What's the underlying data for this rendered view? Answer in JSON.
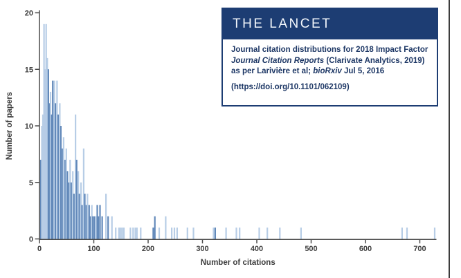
{
  "info_box": {
    "brand": "THE LANCET",
    "lines": [
      [
        {
          "t": "Journal citation distributions for 2018 Impact Factor",
          "i": false
        }
      ],
      [
        {
          "t": "Journal Citation Reports",
          "i": true
        },
        {
          "t": " (Clarivate Analytics, 2019)",
          "i": false
        }
      ],
      [
        {
          "t": "as per Larivière et al; ",
          "i": false
        },
        {
          "t": "bioRxiv",
          "i": true
        },
        {
          "t": " Jul 5, 2016",
          "i": false
        }
      ]
    ],
    "doi_line": "(https://doi.org/10.1101/062109)"
  },
  "colors": {
    "brand_navy": "#1d3d73",
    "info_text_navy": "#1d3765",
    "axis_gray": "#4a4a4a",
    "label_gray": "#3d3d3d",
    "page_edge": "#3c3c3c"
  },
  "chart_data": {
    "type": "bar",
    "title": "",
    "xlabel": "Number of citations",
    "ylabel": "Number of papers",
    "xlim": [
      0,
      730
    ],
    "ylim": [
      0,
      20
    ],
    "x_ticks": [
      0,
      100,
      200,
      300,
      400,
      500,
      600,
      700
    ],
    "y_ticks": [
      0,
      5,
      10,
      15,
      20
    ],
    "grid": false,
    "legend": "none",
    "bar_color_light": "#b7cde6",
    "bar_color_dark": "#6289ba",
    "bars": [
      {
        "x": 1,
        "h": 7,
        "s": "d"
      },
      {
        "x": 3,
        "h": 10,
        "s": "l"
      },
      {
        "x": 5,
        "h": 11,
        "s": "l"
      },
      {
        "x": 7,
        "h": 19,
        "s": "l"
      },
      {
        "x": 9,
        "h": 15,
        "s": "l"
      },
      {
        "x": 11,
        "h": 19,
        "s": "l"
      },
      {
        "x": 13,
        "h": 16,
        "s": "l"
      },
      {
        "x": 15,
        "h": 15,
        "s": "d"
      },
      {
        "x": 17,
        "h": 12,
        "s": "d"
      },
      {
        "x": 19,
        "h": 13,
        "s": "l"
      },
      {
        "x": 21,
        "h": 11,
        "s": "d"
      },
      {
        "x": 23,
        "h": 14,
        "s": "d"
      },
      {
        "x": 26,
        "h": 14,
        "s": "l"
      },
      {
        "x": 28,
        "h": 12,
        "s": "d"
      },
      {
        "x": 31,
        "h": 14,
        "s": "l"
      },
      {
        "x": 33,
        "h": 11,
        "s": "d"
      },
      {
        "x": 36,
        "h": 12,
        "s": "l"
      },
      {
        "x": 38,
        "h": 10,
        "s": "d"
      },
      {
        "x": 41,
        "h": 8,
        "s": "d"
      },
      {
        "x": 43,
        "h": 9,
        "s": "l"
      },
      {
        "x": 46,
        "h": 7,
        "s": "d"
      },
      {
        "x": 48,
        "h": 8,
        "s": "l"
      },
      {
        "x": 50,
        "h": 6,
        "s": "d"
      },
      {
        "x": 53,
        "h": 5,
        "s": "d"
      },
      {
        "x": 55,
        "h": 7,
        "s": "l"
      },
      {
        "x": 57,
        "h": 5,
        "s": "d"
      },
      {
        "x": 60,
        "h": 6,
        "s": "l"
      },
      {
        "x": 62,
        "h": 4,
        "s": "d"
      },
      {
        "x": 65,
        "h": 11,
        "s": "l"
      },
      {
        "x": 67,
        "h": 7,
        "s": "d"
      },
      {
        "x": 70,
        "h": 6,
        "s": "l"
      },
      {
        "x": 72,
        "h": 4,
        "s": "d"
      },
      {
        "x": 75,
        "h": 5,
        "s": "l"
      },
      {
        "x": 77,
        "h": 3,
        "s": "d"
      },
      {
        "x": 80,
        "h": 8,
        "s": "l"
      },
      {
        "x": 82,
        "h": 4,
        "s": "d"
      },
      {
        "x": 85,
        "h": 3,
        "s": "d"
      },
      {
        "x": 87,
        "h": 4,
        "s": "l"
      },
      {
        "x": 90,
        "h": 3,
        "s": "d"
      },
      {
        "x": 92,
        "h": 2,
        "s": "d"
      },
      {
        "x": 95,
        "h": 3,
        "s": "l"
      },
      {
        "x": 97,
        "h": 2,
        "s": "d"
      },
      {
        "x": 100,
        "h": 2,
        "s": "d"
      },
      {
        "x": 102,
        "h": 2,
        "s": "l"
      },
      {
        "x": 105,
        "h": 3,
        "s": "d"
      },
      {
        "x": 107,
        "h": 2,
        "s": "d"
      },
      {
        "x": 110,
        "h": 3,
        "s": "d"
      },
      {
        "x": 114,
        "h": 2,
        "s": "d"
      },
      {
        "x": 121,
        "h": 4,
        "s": "l"
      },
      {
        "x": 125,
        "h": 2,
        "s": "d"
      },
      {
        "x": 132,
        "h": 2,
        "s": "l"
      },
      {
        "x": 139,
        "h": 1,
        "s": "l"
      },
      {
        "x": 145,
        "h": 1,
        "s": "l"
      },
      {
        "x": 148,
        "h": 1,
        "s": "l"
      },
      {
        "x": 151,
        "h": 1,
        "s": "l"
      },
      {
        "x": 154,
        "h": 1,
        "s": "l"
      },
      {
        "x": 166,
        "h": 1,
        "s": "l"
      },
      {
        "x": 171,
        "h": 1,
        "s": "l"
      },
      {
        "x": 175,
        "h": 1,
        "s": "l"
      },
      {
        "x": 178,
        "h": 1,
        "s": "l"
      },
      {
        "x": 185,
        "h": 1,
        "s": "l"
      },
      {
        "x": 208,
        "h": 1,
        "s": "d"
      },
      {
        "x": 211,
        "h": 2,
        "s": "d"
      },
      {
        "x": 219,
        "h": 1,
        "s": "l"
      },
      {
        "x": 231,
        "h": 2,
        "s": "l"
      },
      {
        "x": 242,
        "h": 1,
        "s": "l"
      },
      {
        "x": 247,
        "h": 1,
        "s": "l"
      },
      {
        "x": 252,
        "h": 1,
        "s": "l"
      },
      {
        "x": 271,
        "h": 1,
        "s": "l"
      },
      {
        "x": 282,
        "h": 1,
        "s": "l"
      },
      {
        "x": 319,
        "h": 1,
        "s": "l"
      },
      {
        "x": 322,
        "h": 1,
        "s": "d"
      },
      {
        "x": 342,
        "h": 1,
        "s": "l"
      },
      {
        "x": 361,
        "h": 1,
        "s": "l"
      },
      {
        "x": 367,
        "h": 1,
        "s": "l"
      },
      {
        "x": 403,
        "h": 1,
        "s": "l"
      },
      {
        "x": 418,
        "h": 1,
        "s": "l"
      },
      {
        "x": 441,
        "h": 1,
        "s": "l"
      },
      {
        "x": 480,
        "h": 1,
        "s": "l"
      },
      {
        "x": 666,
        "h": 1,
        "s": "l"
      },
      {
        "x": 675,
        "h": 1,
        "s": "l"
      },
      {
        "x": 726,
        "h": 1,
        "s": "l"
      }
    ]
  }
}
